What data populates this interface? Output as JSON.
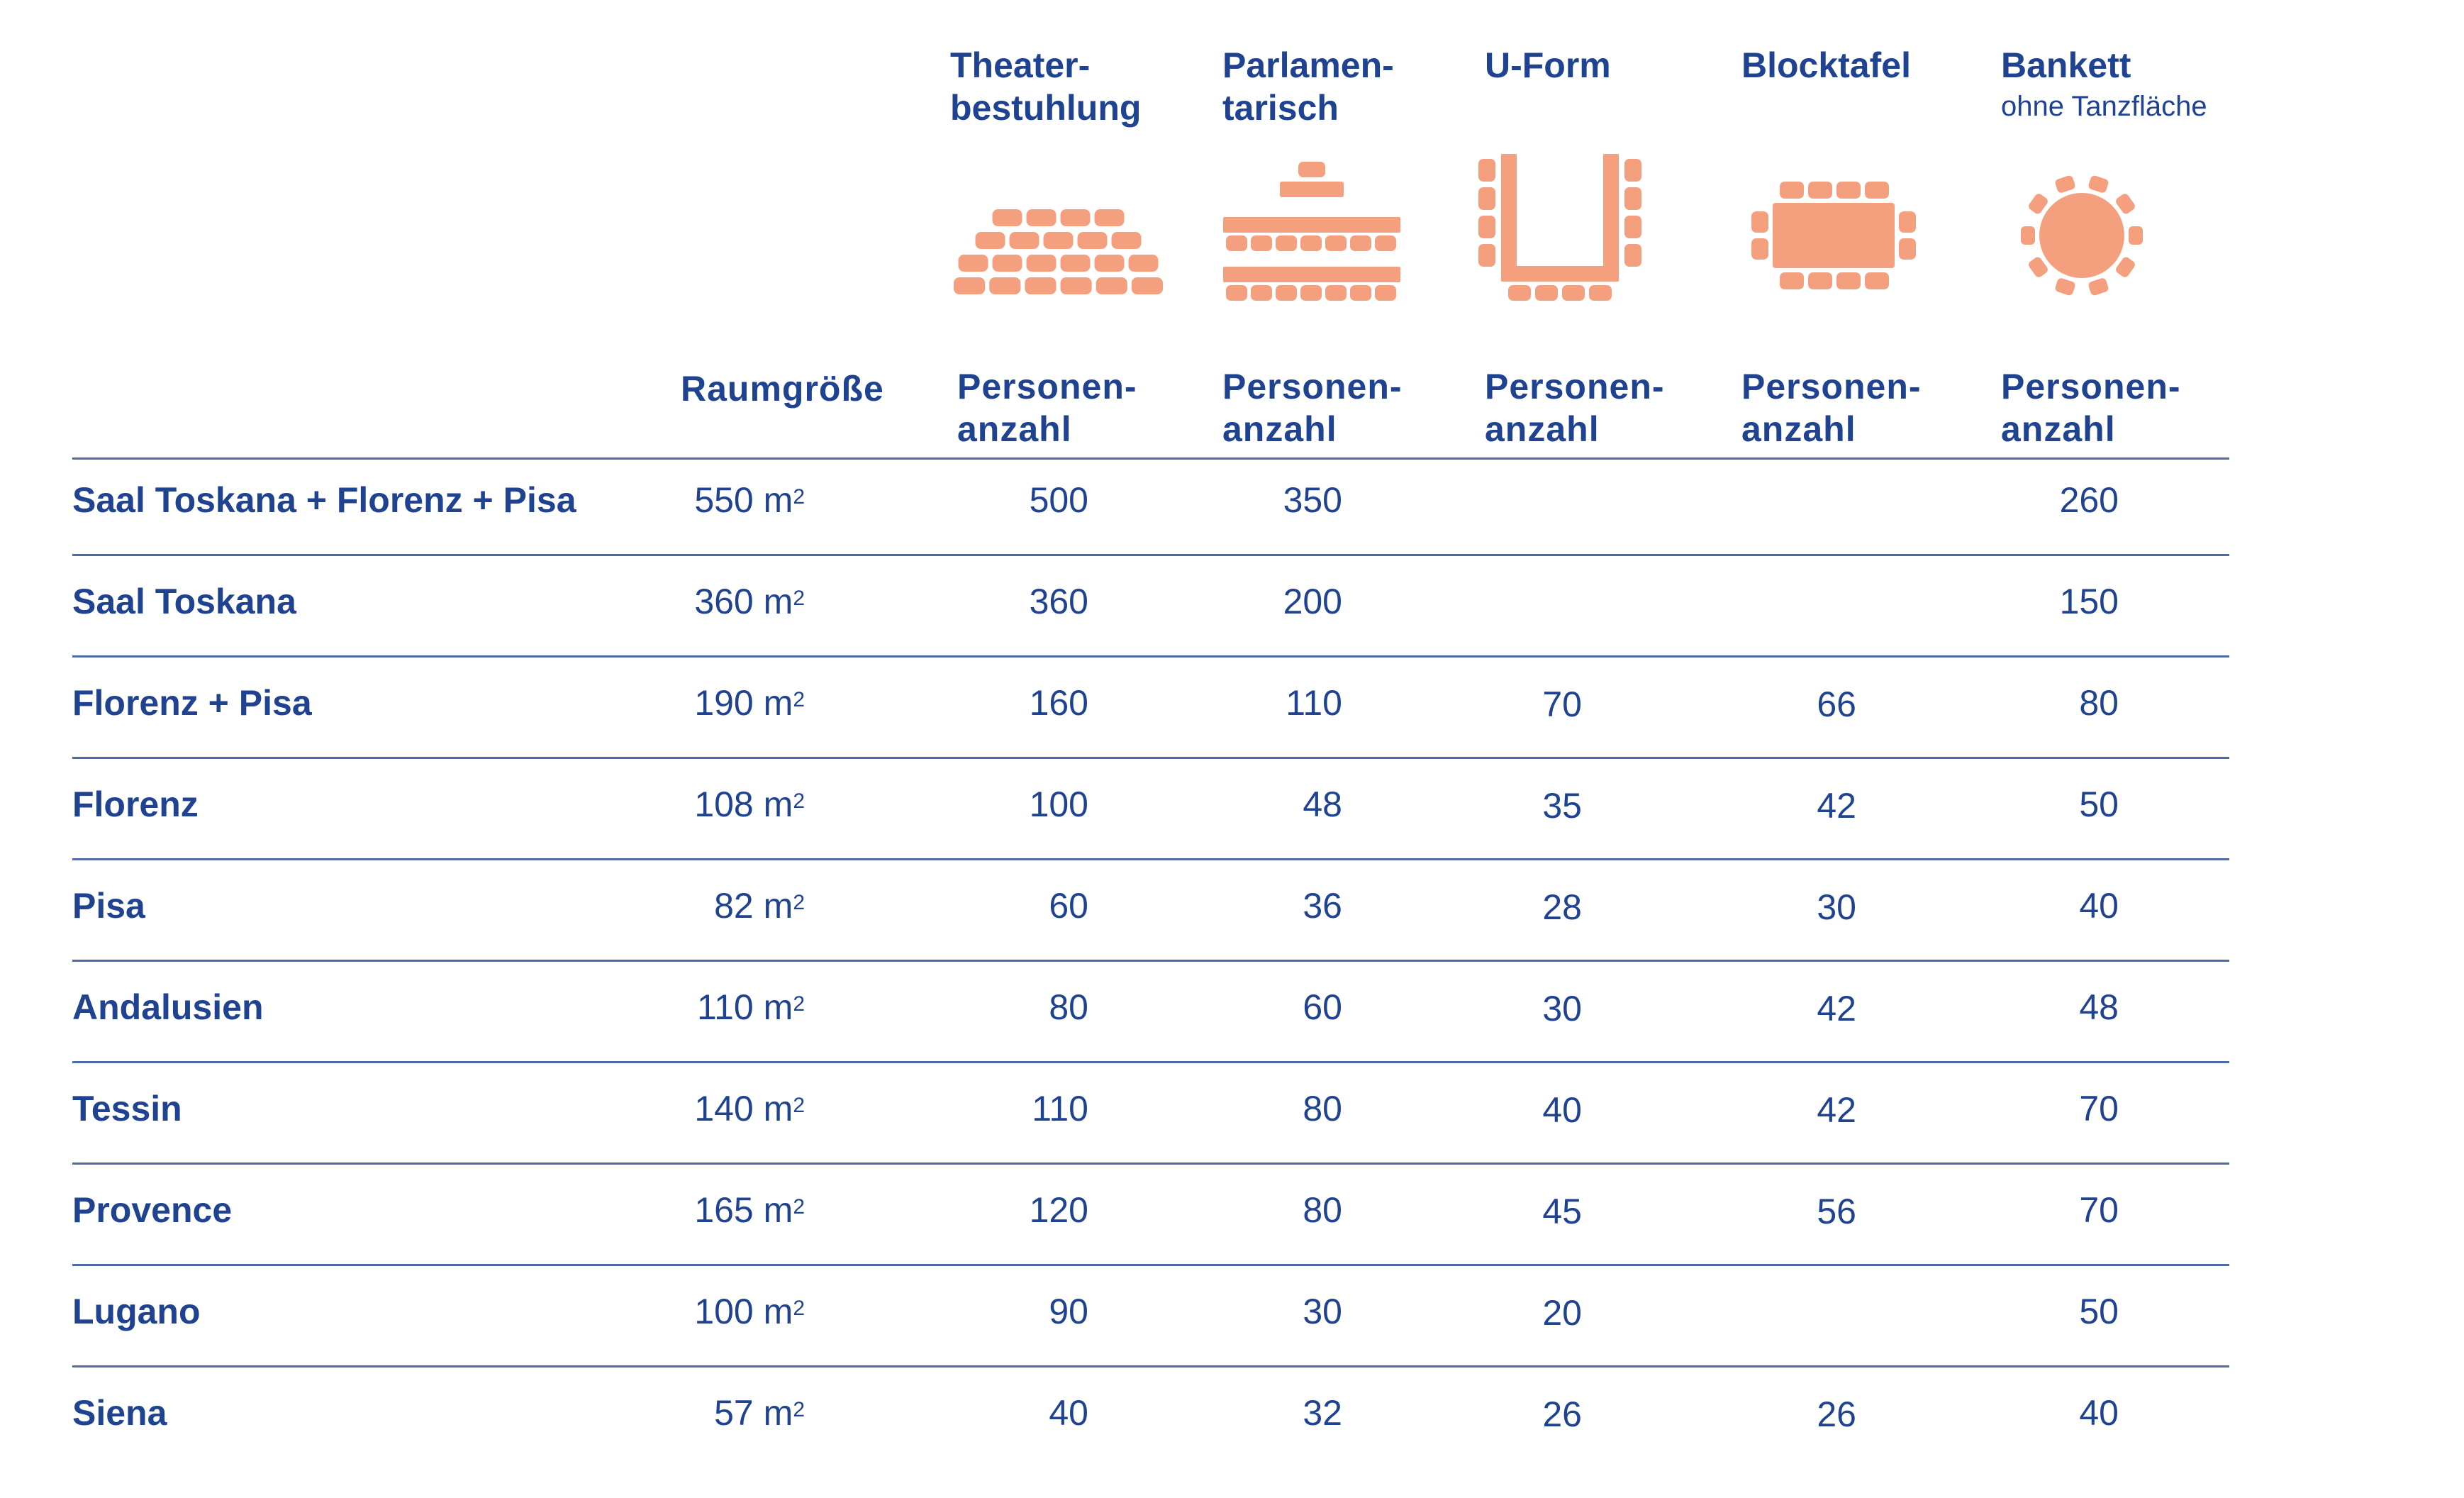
{
  "colors": {
    "text": "#1f4390",
    "icon": "#f4a07f",
    "rule": "#4f6aa8"
  },
  "layouts": [
    {
      "title": "Theater-\nbestuhlung",
      "subtitle": "",
      "icon": "theater-seating-icon",
      "count_label": "Personen-\nanzahl"
    },
    {
      "title": "Parlamen-\ntarisch",
      "subtitle": "",
      "icon": "parliamentary-seating-icon",
      "count_label": "Personen-\nanzahl"
    },
    {
      "title": "U-Form",
      "subtitle": "",
      "icon": "u-shape-seating-icon",
      "count_label": "Personen-\nanzahl"
    },
    {
      "title": "Blocktafel",
      "subtitle": "",
      "icon": "block-table-icon",
      "count_label": "Personen-\nanzahl"
    },
    {
      "title": "Bankett",
      "subtitle": "ohne Tanzfläche",
      "icon": "banquet-table-icon",
      "count_label": "Personen-\nanzahl"
    }
  ],
  "size_header": "Raumgröße",
  "unit": "m",
  "unit_sup": "2",
  "rows": [
    {
      "name": "Saal Toskana + Florenz + Pisa",
      "size": "550",
      "counts": [
        "500",
        "350",
        "",
        "",
        "260"
      ]
    },
    {
      "name": "Saal Toskana",
      "size": "360",
      "counts": [
        "360",
        "200",
        "",
        "",
        "150"
      ]
    },
    {
      "name": "Florenz + Pisa",
      "size": "190",
      "counts": [
        "160",
        "110",
        "70",
        "66",
        "80"
      ]
    },
    {
      "name": "Florenz",
      "size": "108",
      "counts": [
        "100",
        "48",
        "35",
        "42",
        "50"
      ]
    },
    {
      "name": "Pisa",
      "size": "82",
      "counts": [
        "60",
        "36",
        "28",
        "30",
        "40"
      ]
    },
    {
      "name": "Andalusien",
      "size": "110",
      "counts": [
        "80",
        "60",
        "30",
        "42",
        "48"
      ]
    },
    {
      "name": "Tessin",
      "size": "140",
      "counts": [
        "110",
        "80",
        "40",
        "42",
        "70"
      ]
    },
    {
      "name": "Provence",
      "size": "165",
      "counts": [
        "120",
        "80",
        "45",
        "56",
        "70"
      ]
    },
    {
      "name": "Lugano",
      "size": "100",
      "counts": [
        "90",
        "30",
        "20",
        "",
        "50"
      ]
    },
    {
      "name": "Siena",
      "size": "57",
      "counts": [
        "40",
        "32",
        "26",
        "26",
        "40"
      ]
    }
  ]
}
